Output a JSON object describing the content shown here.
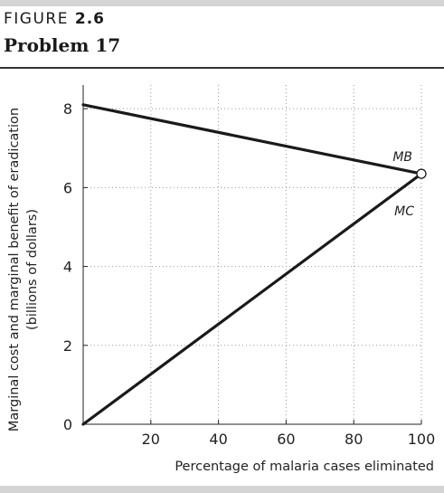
{
  "figure": {
    "label": "FIGURE",
    "number": "2.6",
    "title": "Problem 17"
  },
  "chart_data": {
    "type": "line",
    "xlabel": "Percentage of malaria cases eliminated",
    "ylabel_line1": "Marginal cost and marginal benefit of eradication",
    "ylabel_line2": "(billions of dollars)",
    "xlim": [
      0,
      100
    ],
    "ylim": [
      0,
      8.6
    ],
    "x_ticks": [
      0,
      20,
      40,
      60,
      80,
      100
    ],
    "y_ticks": [
      0,
      2,
      4,
      6,
      8
    ],
    "grid": "dotted",
    "series": [
      {
        "name": "MB",
        "x": [
          0,
          100
        ],
        "y": [
          8.1,
          6.35
        ]
      },
      {
        "name": "MC",
        "x": [
          0,
          100
        ],
        "y": [
          0,
          6.35
        ]
      }
    ],
    "intersection": {
      "x": 100,
      "y": 6.35
    },
    "colors": {
      "line": "#1a1a1a",
      "grid": "#9a9a9a",
      "rule": "#333333",
      "bar": "#d4d4d4"
    }
  }
}
